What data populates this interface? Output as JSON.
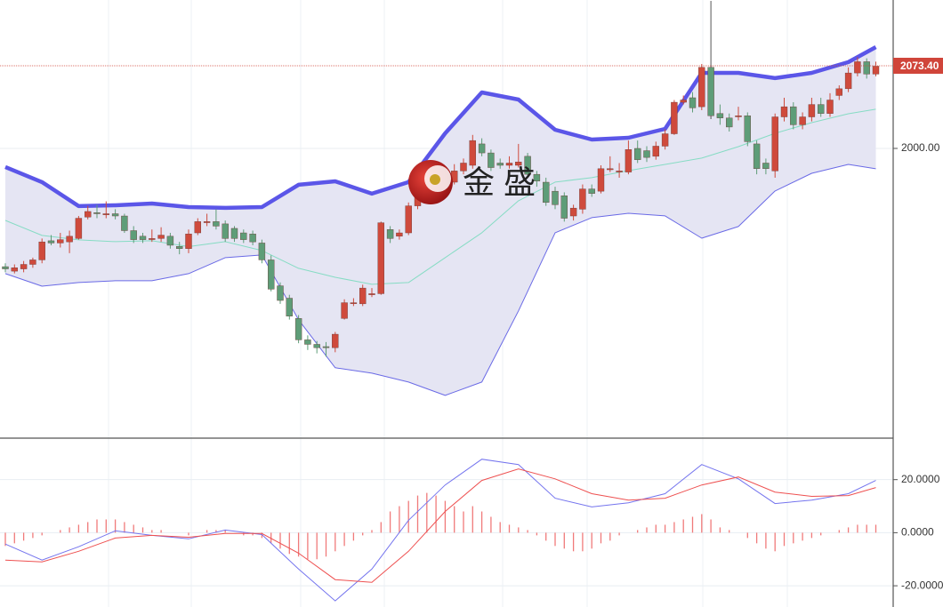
{
  "watermark": "金 盛",
  "chart_data": [
    {
      "type": "candlestick",
      "up_color": "#cf4a3c",
      "down_color": "#5e9d78",
      "open": [
        1895,
        1891,
        1893,
        1897,
        1901,
        1918,
        1916,
        1917,
        1920,
        1939,
        1943,
        1942,
        1942,
        1940,
        1927,
        1922,
        1920,
        1920,
        1922,
        1913,
        1911,
        1925,
        1935,
        1935,
        1933,
        1929,
        1925,
        1924,
        1916,
        1901,
        1878,
        1867,
        1849,
        1830,
        1826,
        1824,
        1823,
        1849,
        1863,
        1862,
        1871,
        1871,
        1928,
        1922,
        1925,
        1949,
        1970,
        1978,
        1970,
        1970,
        1980,
        1985,
        2004,
        1996,
        1987,
        1985,
        1985,
        1993,
        1977,
        1970,
        1962,
        1958,
        1940,
        1946,
        1964,
        1962,
        1982,
        1980,
        1979,
        2000,
        1998,
        1993,
        2002,
        2013,
        2041,
        2045,
        2037,
        2072,
        2031,
        2027,
        2029,
        2029,
        2004,
        1987,
        1980,
        2028,
        2037,
        2021,
        2028,
        2039,
        2031,
        2047,
        2053,
        2067,
        2077,
        2066
      ],
      "high": [
        1898,
        1897,
        1900,
        1903,
        1920,
        1923,
        1925,
        1927,
        1940,
        1949,
        1950,
        1953,
        1946,
        1942,
        1931,
        1925,
        1928,
        1930,
        1925,
        1917,
        1928,
        1938,
        1942,
        1946,
        1936,
        1931,
        1928,
        1927,
        1919,
        1905,
        1881,
        1870,
        1852,
        1834,
        1829,
        1828,
        1837,
        1866,
        1867,
        1879,
        1876,
        1935,
        1931,
        1928,
        1952,
        1961,
        1986,
        1982,
        1977,
        1986,
        1991,
        2012,
        2009,
        1999,
        1991,
        1993,
        2004,
        1996,
        1980,
        1974,
        1966,
        1961,
        1950,
        1968,
        1968,
        1985,
        1993,
        1987,
        2007,
        2007,
        2002,
        2006,
        2017,
        2043,
        2047,
        2050,
        2075,
        2131,
        2039,
        2031,
        2037,
        2032,
        2007,
        1991,
        2031,
        2045,
        2041,
        2032,
        2045,
        2045,
        2049,
        2056,
        2072,
        2081,
        2080,
        2077
      ],
      "low": [
        1890,
        1889,
        1890,
        1894,
        1898,
        1914,
        1912,
        1907,
        1919,
        1937,
        1938,
        1938,
        1937,
        1925,
        1916,
        1916,
        1917,
        1917,
        1911,
        1906,
        1907,
        1923,
        1931,
        1928,
        1917,
        1917,
        1916,
        1914,
        1898,
        1873,
        1862,
        1848,
        1827,
        1821,
        1818,
        1815,
        1819,
        1848,
        1860,
        1860,
        1868,
        1870,
        1916,
        1919,
        1923,
        1946,
        1968,
        1966,
        1966,
        1968,
        1977,
        1982,
        1993,
        1980,
        1982,
        1982,
        1983,
        1974,
        1966,
        1949,
        1946,
        1935,
        1936,
        1942,
        1957,
        1960,
        1979,
        1974,
        1977,
        1987,
        1988,
        1990,
        1999,
        2012,
        2039,
        2032,
        2034,
        2026,
        2021,
        2015,
        2025,
        2002,
        1977,
        1977,
        1974,
        2024,
        2017,
        2017,
        2024,
        2028,
        2028,
        2043,
        2050,
        2064,
        2062,
        2064
      ],
      "close": [
        1893,
        1894,
        1897,
        1901,
        1917,
        1916,
        1919,
        1922,
        1938,
        1944,
        1942,
        1942,
        1940,
        1927,
        1919,
        1919,
        1920,
        1923,
        1914,
        1911,
        1924,
        1935,
        1935,
        1931,
        1920,
        1920,
        1919,
        1917,
        1901,
        1875,
        1865,
        1851,
        1830,
        1826,
        1823,
        1823,
        1835,
        1863,
        1863,
        1876,
        1871,
        1934,
        1920,
        1925,
        1949,
        1958,
        1978,
        1970,
        1970,
        1980,
        1987,
        2007,
        1996,
        1983,
        1985,
        1987,
        1988,
        1977,
        1971,
        1952,
        1950,
        1938,
        1947,
        1964,
        1960,
        1982,
        1982,
        1980,
        1999,
        1990,
        1992,
        2002,
        2013,
        2041,
        2043,
        2036,
        2072,
        2029,
        2027,
        2019,
        2029,
        2006,
        1982,
        1982,
        2028,
        2037,
        2021,
        2028,
        2039,
        2031,
        2043,
        2053,
        2067,
        2077,
        2066,
        2073
      ],
      "band_fill": "#e5e5f3",
      "series": [
        {
          "color": "#5b56e8",
          "width": 4.5,
          "x": [
            0,
            4,
            8,
            12,
            16,
            20,
            24,
            28,
            32,
            36,
            40,
            44,
            48,
            52,
            56,
            60,
            64,
            68,
            72,
            76,
            80,
            84,
            88,
            92,
            95
          ],
          "values": [
            1983.5,
            1970.1,
            1948.8,
            1949.5,
            1951.1,
            1947.9,
            1947.2,
            1947.9,
            1967.7,
            1970.8,
            1959.8,
            1970.1,
            2013.4,
            2049.7,
            2043.4,
            2016.6,
            2007.9,
            2009.5,
            2017.4,
            2067.1,
            2067.1,
            2062.4,
            2067.1,
            2076.6,
            2090.0
          ]
        },
        {
          "color": "#86dcc4",
          "width": 1,
          "x": [
            0,
            4,
            8,
            12,
            16,
            20,
            24,
            28,
            32,
            36,
            40,
            44,
            48,
            52,
            56,
            60,
            64,
            68,
            72,
            76,
            80,
            84,
            88,
            92,
            95
          ],
          "values": [
            1936.1,
            1922.7,
            1918.8,
            1917.2,
            1918.0,
            1912.8,
            1917.2,
            1909.3,
            1893.5,
            1885.6,
            1879.3,
            1880.9,
            1903.0,
            1925.1,
            1953.5,
            1970.1,
            1974.0,
            1980.3,
            1985.8,
            1991.4,
            2001.6,
            2013.4,
            2022.9,
            2030.8,
            2034.8
          ]
        },
        {
          "color": "#6a6ae6",
          "width": 1,
          "x": [
            0,
            4,
            8,
            12,
            16,
            20,
            24,
            28,
            32,
            36,
            40,
            44,
            48,
            52,
            56,
            60,
            64,
            68,
            72,
            76,
            80,
            84,
            88,
            92,
            95
          ],
          "values": [
            1888.8,
            1877.7,
            1880.9,
            1882.5,
            1882.5,
            1888.8,
            1903.0,
            1905.4,
            1847.8,
            1805.2,
            1800.4,
            1792.5,
            1780.7,
            1792.5,
            1855.7,
            1925.1,
            1938.5,
            1942.4,
            1940.1,
            1920.3,
            1930.6,
            1962.2,
            1977.9,
            1985.8,
            1981.9
          ]
        }
      ],
      "ylim": [
        1743.5,
        2131.8
      ],
      "yticks": [
        {
          "value": 2000,
          "label": "2000.00"
        }
      ],
      "last_price": {
        "value": 2073.4,
        "label": "2073.40"
      },
      "last_price_color": "#d0453a"
    },
    {
      "type": "macd",
      "histogram": {
        "color": "#f07a7a",
        "values": [
          -5,
          -4,
          -3,
          -2,
          -1,
          0,
          1,
          2,
          3,
          4,
          5,
          5,
          5,
          4,
          3,
          2,
          1,
          1,
          0,
          0,
          -1,
          0,
          1,
          1,
          1,
          0,
          -1,
          -1,
          -2,
          -4,
          -6,
          -8,
          -9,
          -10,
          -10,
          -9,
          -7,
          -5,
          -3,
          -1,
          1,
          4,
          8,
          10,
          12,
          14,
          15,
          14,
          12,
          10,
          8,
          10,
          8,
          6,
          4,
          3,
          2,
          1,
          -1,
          -3,
          -5,
          -6,
          -7,
          -7,
          -6,
          -4,
          -3,
          -1,
          0,
          1,
          2,
          3,
          3,
          4,
          5,
          6,
          7,
          5,
          2,
          1,
          0,
          -2,
          -4,
          -6,
          -7,
          -5,
          -4,
          -3,
          -2,
          -1,
          0,
          1,
          2,
          3,
          3,
          3
        ]
      },
      "series": [
        {
          "color": "#7474ee",
          "x": [
            0,
            4,
            8,
            12,
            16,
            20,
            24,
            28,
            32,
            36,
            40,
            44,
            48,
            52,
            56,
            60,
            64,
            68,
            72,
            76,
            80,
            84,
            88,
            92,
            95
          ],
          "values": [
            -4.3,
            -10.3,
            -5.3,
            0.7,
            -1,
            -2.3,
            1,
            -0.7,
            -13.7,
            -25.7,
            -13.7,
            4.7,
            18,
            27.7,
            25.7,
            13,
            9.7,
            11.3,
            14.7,
            25.7,
            20.3,
            11,
            12.3,
            14.7,
            19.7
          ]
        },
        {
          "color": "#ee5050",
          "x": [
            0,
            4,
            8,
            12,
            16,
            20,
            24,
            28,
            32,
            36,
            40,
            44,
            48,
            52,
            56,
            60,
            64,
            68,
            72,
            76,
            80,
            84,
            88,
            92,
            95
          ],
          "values": [
            -10.3,
            -11,
            -7,
            -2,
            -1,
            -1.7,
            -0.3,
            -0.3,
            -7.7,
            -17.7,
            -18.7,
            -7,
            8,
            19.7,
            24,
            20.3,
            14.7,
            12.3,
            13,
            18,
            21,
            15.3,
            13.7,
            14,
            17
          ]
        }
      ],
      "ylim": [
        -28,
        35.3
      ],
      "yticks": [
        {
          "value": 20,
          "label": "20.0000"
        },
        {
          "value": 0,
          "label": "0.0000"
        },
        {
          "value": -20,
          "label": "-20.0000"
        }
      ]
    }
  ]
}
